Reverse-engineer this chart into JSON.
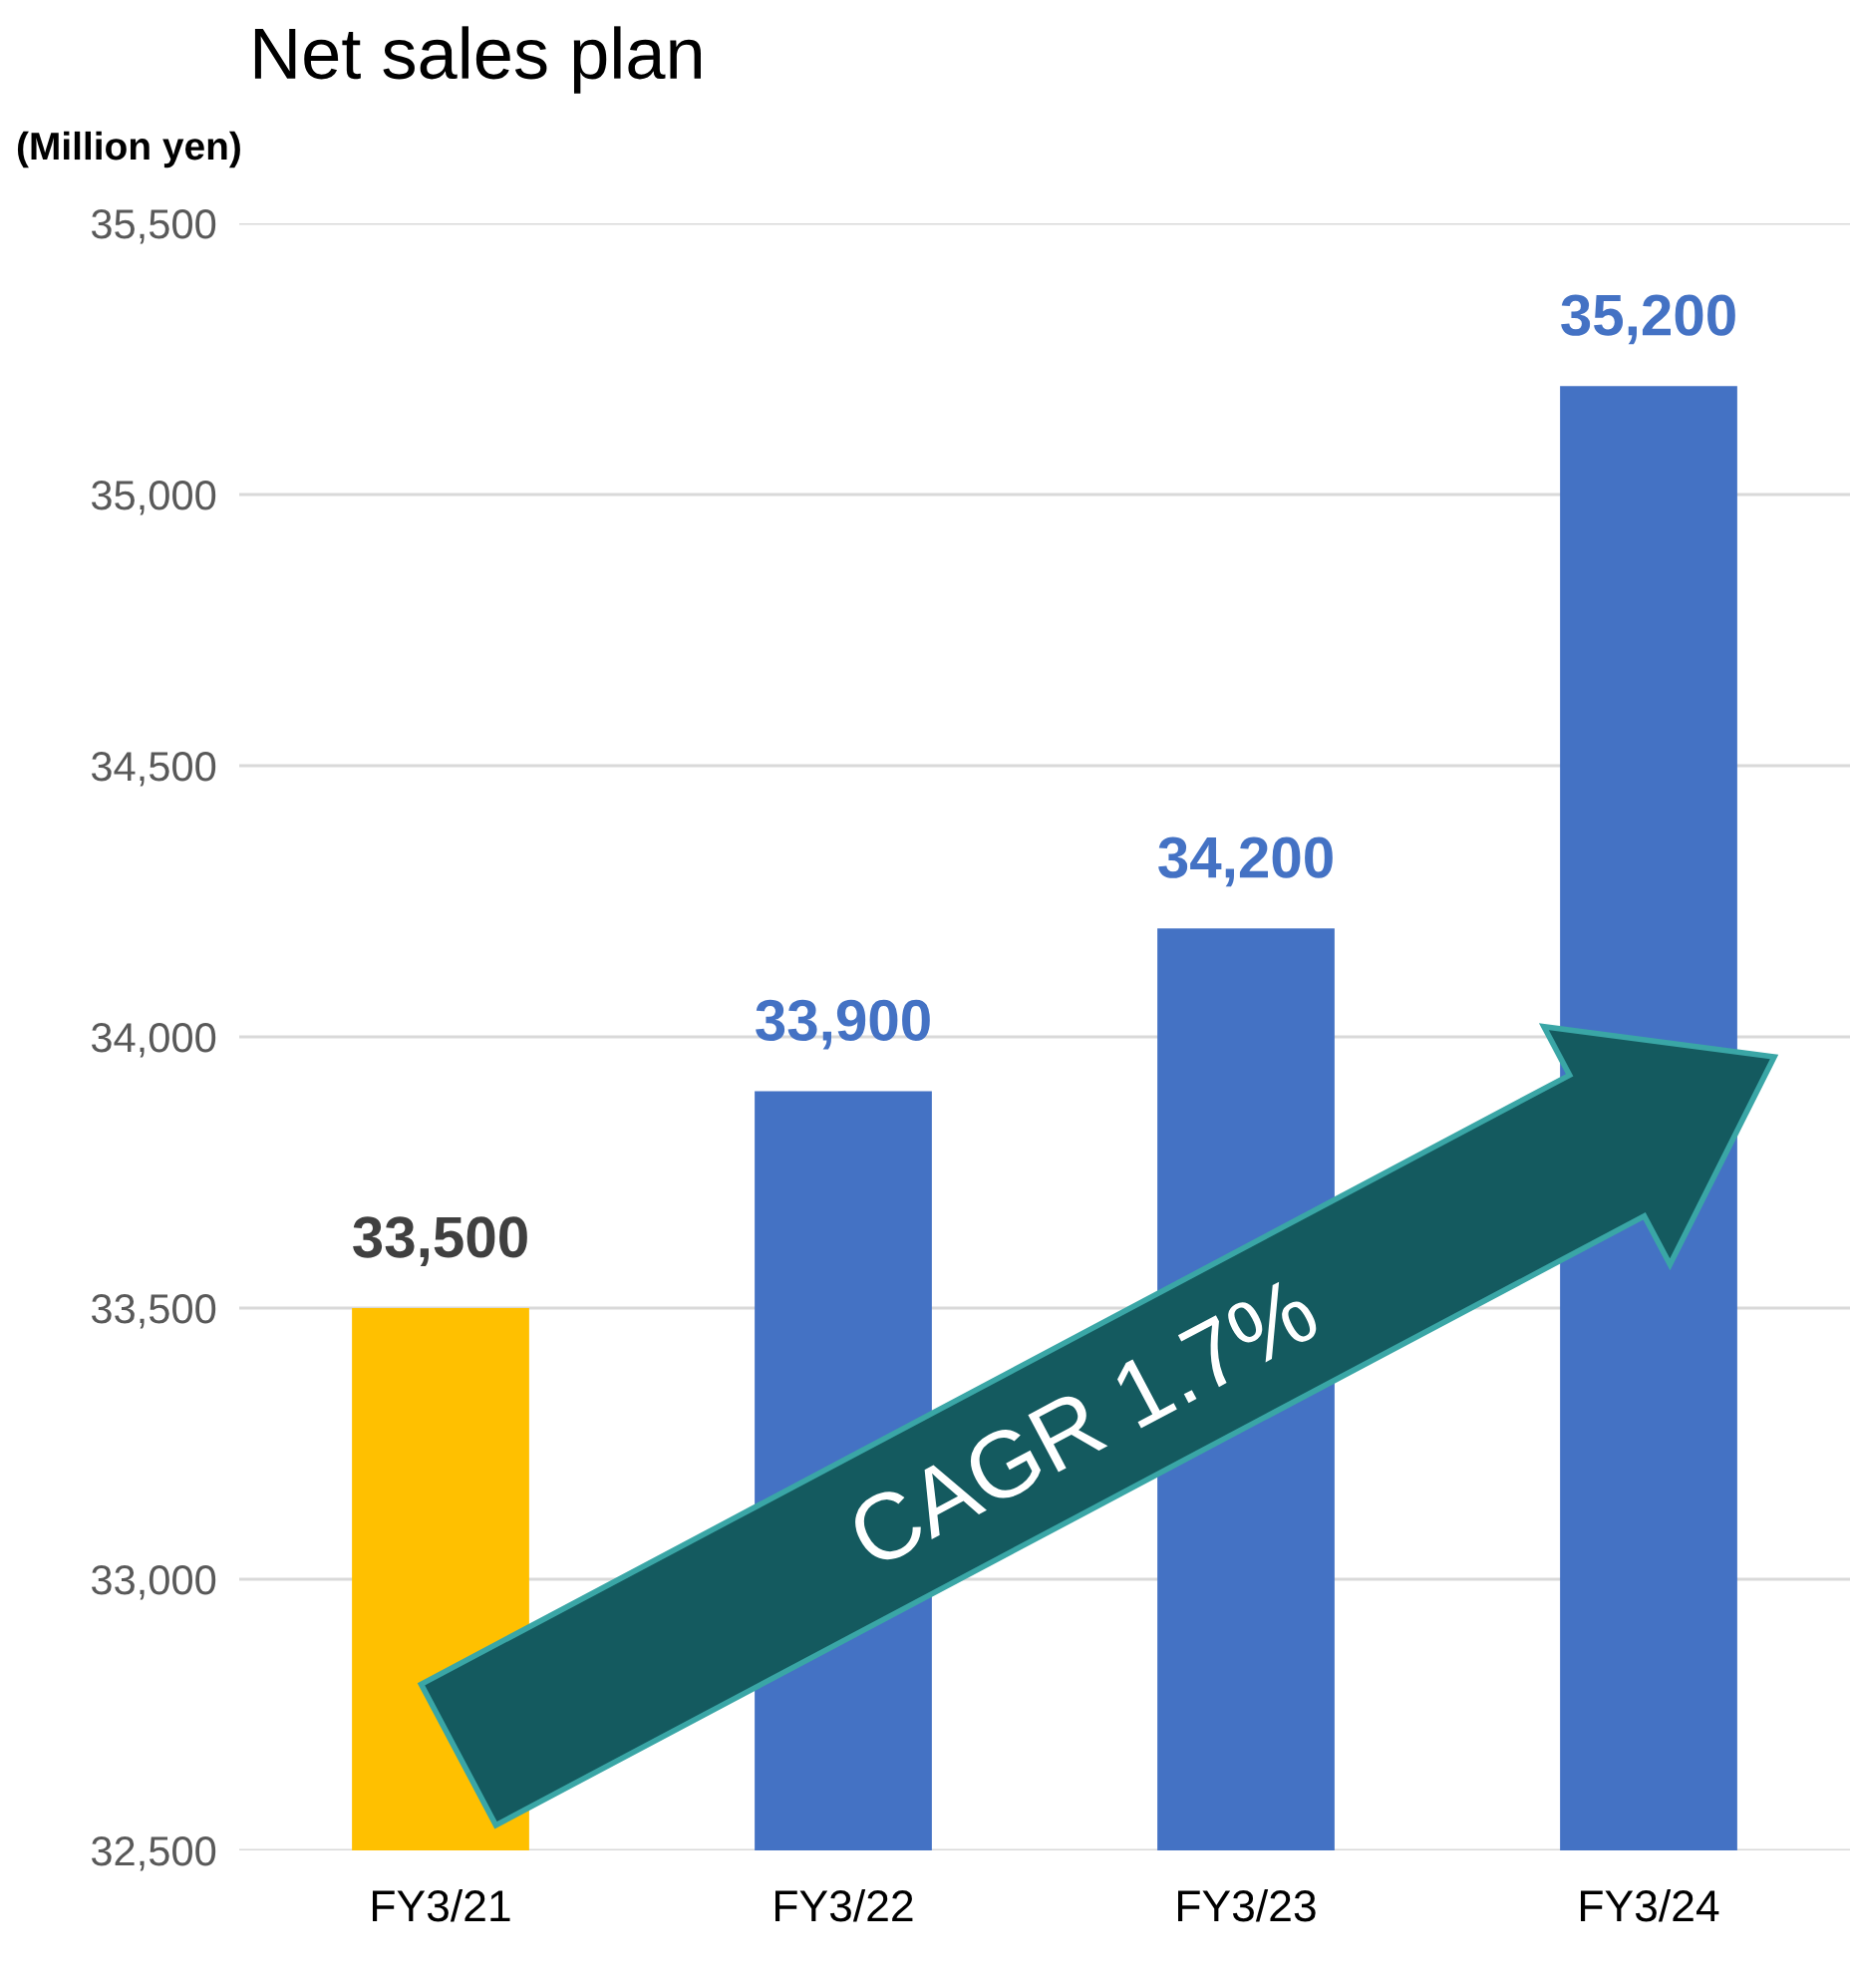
{
  "chart_data": {
    "type": "bar",
    "title": "Net sales plan",
    "ylabel": "(Million yen)",
    "categories": [
      "FY3/21",
      "FY3/22",
      "FY3/23",
      "FY3/24"
    ],
    "values": [
      33500,
      33900,
      34200,
      35200
    ],
    "colors": [
      "#ffc000",
      "#4472c4",
      "#4472c4",
      "#4472c4"
    ],
    "value_labels": [
      "33,500",
      "33,900",
      "34,200",
      "35,200"
    ],
    "ylim": [
      32500,
      35500
    ],
    "yticks": [
      {
        "value": 32500,
        "label": "32,500"
      },
      {
        "value": 33000,
        "label": "33,000"
      },
      {
        "value": 33500,
        "label": "33,500"
      },
      {
        "value": 34000,
        "label": "34,000"
      },
      {
        "value": 34500,
        "label": "34,500"
      },
      {
        "value": 35000,
        "label": "35,000"
      },
      {
        "value": 35500,
        "label": "35,500"
      }
    ],
    "grid": "y",
    "annotations": [
      "CAGR 1.7%"
    ]
  }
}
